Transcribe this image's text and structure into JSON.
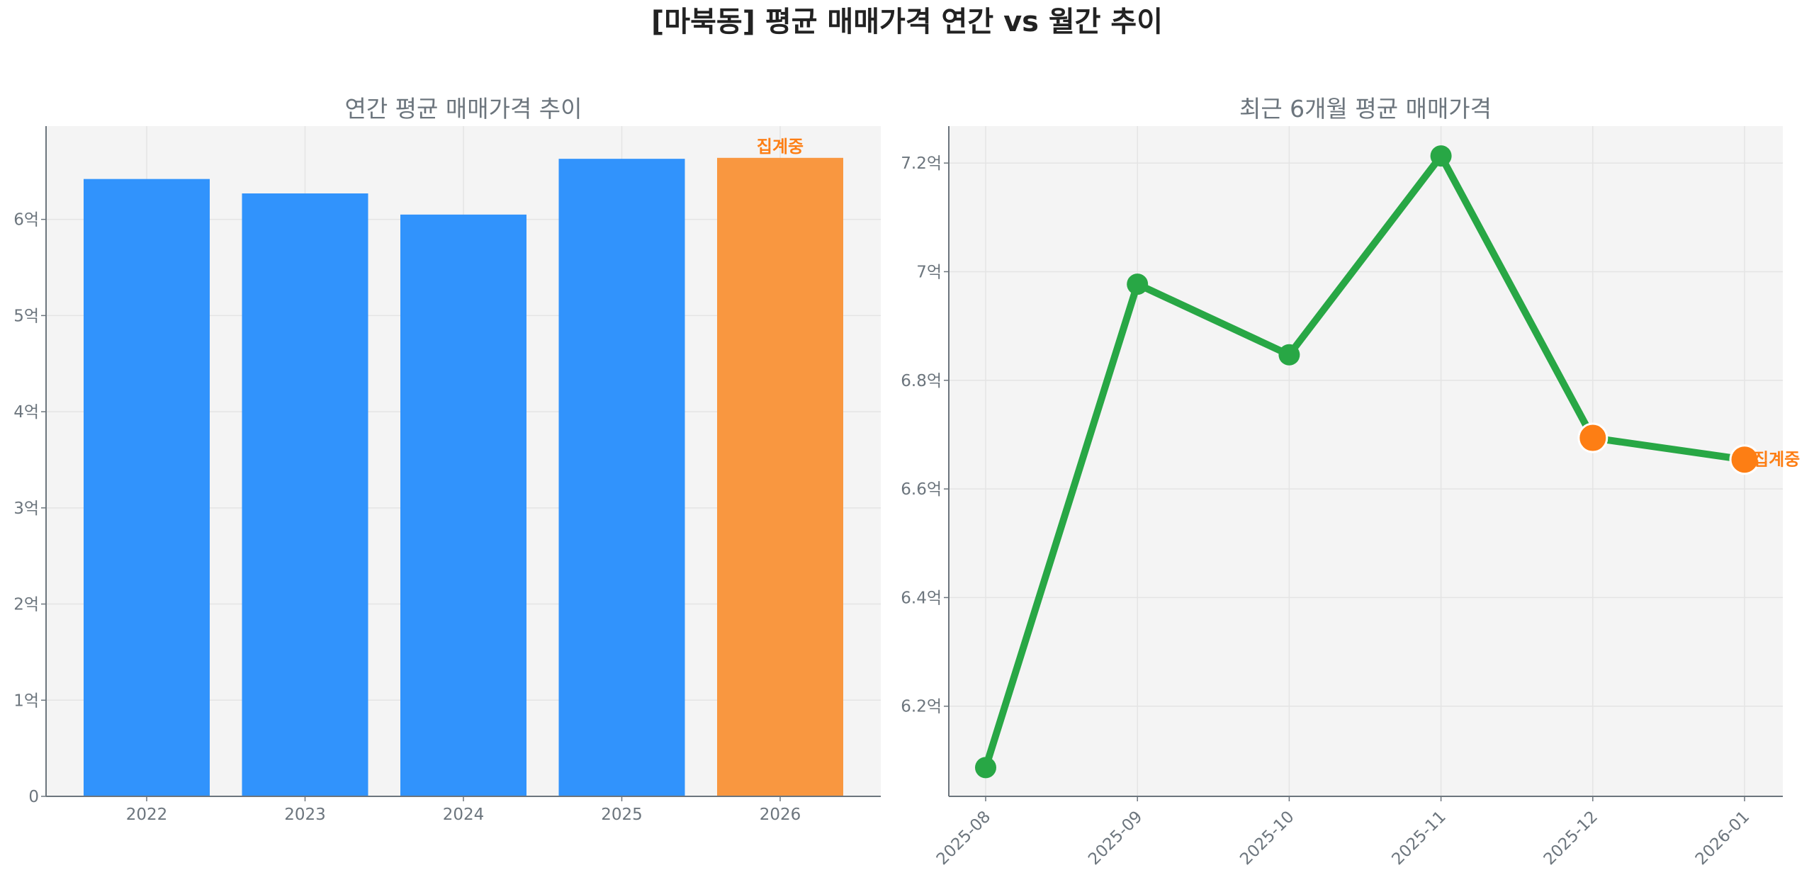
{
  "title": "[마북동] 평균 매매가격 연간 vs 월간 추이",
  "colors": {
    "bar": "#3193fc",
    "bar_partial": "#f99740",
    "line": "#28a745",
    "marker_partial": "#fd7e14",
    "annotation": "#fd7e14",
    "plot_bg": "#f4f4f4"
  },
  "chart_data": [
    {
      "type": "bar",
      "title": "연간 평균 매매가격 추이",
      "categories": [
        "2022",
        "2023",
        "2024",
        "2025",
        "2026"
      ],
      "values": [
        6.42,
        6.27,
        6.05,
        6.63,
        6.64
      ],
      "unit": "억",
      "partial": [
        false,
        false,
        false,
        false,
        true
      ],
      "annotation": "집계중",
      "ylim": [
        0,
        6.97
      ],
      "yticks": [
        0,
        1,
        2,
        3,
        4,
        5,
        6
      ],
      "ytick_labels": [
        "0",
        "1억",
        "2억",
        "3억",
        "4억",
        "5억",
        "6억"
      ],
      "grid": true
    },
    {
      "type": "line",
      "title": "최근 6개월 평균 매매가격",
      "categories": [
        "2025-08",
        "2025-09",
        "2025-10",
        "2025-11",
        "2025-12",
        "2026-01"
      ],
      "values": [
        6.087,
        6.977,
        6.847,
        7.213,
        6.694,
        6.654
      ],
      "unit": "억",
      "partial": [
        false,
        false,
        false,
        false,
        true,
        true
      ],
      "annotation": "집계중",
      "ylim": [
        6.034,
        7.268
      ],
      "yticks": [
        6.2,
        6.4,
        6.6,
        6.8,
        7.0,
        7.2
      ],
      "ytick_labels": [
        "6.2억",
        "6.4억",
        "6.6억",
        "6.8억",
        "7억",
        "7.2억"
      ],
      "grid": true
    }
  ]
}
